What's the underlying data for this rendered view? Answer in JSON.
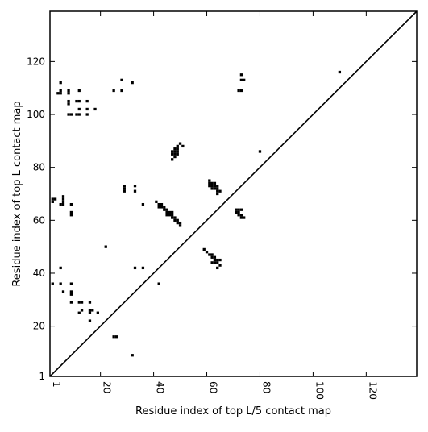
{
  "chart_data": {
    "type": "scatter",
    "title": "",
    "xlabel": "Residue index of top L/5 contact map",
    "ylabel": "Residue index of top L contact map",
    "xlim": [
      1,
      139
    ],
    "ylim": [
      1,
      139
    ],
    "xticks": [
      1,
      20,
      40,
      60,
      80,
      100,
      120
    ],
    "yticks": [
      1,
      20,
      40,
      60,
      80,
      100,
      120
    ],
    "tick_labels": [
      "1",
      "20",
      "40",
      "60",
      "80",
      "100",
      "120"
    ],
    "grid": false,
    "legend": "none",
    "marker": "square",
    "point_color": "#000000",
    "diagonal": true,
    "points": [
      [
        2,
        67
      ],
      [
        2,
        68
      ],
      [
        3,
        68
      ],
      [
        5,
        66
      ],
      [
        6,
        66
      ],
      [
        6,
        67
      ],
      [
        6,
        68
      ],
      [
        6,
        69
      ],
      [
        9,
        66
      ],
      [
        9,
        62
      ],
      [
        9,
        63
      ],
      [
        2,
        36
      ],
      [
        5,
        36
      ],
      [
        9,
        36
      ],
      [
        5,
        42
      ],
      [
        6,
        33
      ],
      [
        9,
        32
      ],
      [
        9,
        33
      ],
      [
        9,
        29
      ],
      [
        12,
        29
      ],
      [
        13,
        29
      ],
      [
        16,
        29
      ],
      [
        12,
        25
      ],
      [
        13,
        26
      ],
      [
        16,
        26
      ],
      [
        16,
        25
      ],
      [
        17,
        26
      ],
      [
        19,
        25
      ],
      [
        16,
        22
      ],
      [
        22,
        50
      ],
      [
        25,
        16
      ],
      [
        26,
        16
      ],
      [
        32,
        9
      ],
      [
        33,
        42
      ],
      [
        36,
        42
      ],
      [
        42,
        36
      ],
      [
        36,
        66
      ],
      [
        29,
        71
      ],
      [
        29,
        72
      ],
      [
        29,
        73
      ],
      [
        33,
        71
      ],
      [
        33,
        73
      ],
      [
        4,
        108
      ],
      [
        5,
        108
      ],
      [
        5,
        109
      ],
      [
        5,
        112
      ],
      [
        8,
        108
      ],
      [
        8,
        109
      ],
      [
        8,
        104
      ],
      [
        8,
        105
      ],
      [
        8,
        100
      ],
      [
        9,
        100
      ],
      [
        11,
        100
      ],
      [
        12,
        100
      ],
      [
        12,
        102
      ],
      [
        11,
        105
      ],
      [
        12,
        105
      ],
      [
        12,
        109
      ],
      [
        15,
        100
      ],
      [
        15,
        102
      ],
      [
        15,
        105
      ],
      [
        18,
        102
      ],
      [
        25,
        109
      ],
      [
        28,
        109
      ],
      [
        28,
        113
      ],
      [
        32,
        112
      ],
      [
        41,
        67
      ],
      [
        42,
        65
      ],
      [
        42,
        66
      ],
      [
        43,
        65
      ],
      [
        43,
        66
      ],
      [
        44,
        64
      ],
      [
        44,
        65
      ],
      [
        45,
        62
      ],
      [
        45,
        63
      ],
      [
        45,
        64
      ],
      [
        46,
        62
      ],
      [
        46,
        63
      ],
      [
        47,
        61
      ],
      [
        47,
        62
      ],
      [
        47,
        63
      ],
      [
        48,
        61
      ],
      [
        48,
        60
      ],
      [
        49,
        60
      ],
      [
        49,
        59
      ],
      [
        50,
        58
      ],
      [
        50,
        59
      ],
      [
        47,
        85
      ],
      [
        47,
        86
      ],
      [
        48,
        84
      ],
      [
        48,
        85
      ],
      [
        48,
        86
      ],
      [
        48,
        87
      ],
      [
        49,
        85
      ],
      [
        49,
        86
      ],
      [
        49,
        87
      ],
      [
        49,
        88
      ],
      [
        47,
        83
      ],
      [
        50,
        89
      ],
      [
        51,
        88
      ],
      [
        61,
        73
      ],
      [
        61,
        74
      ],
      [
        61,
        75
      ],
      [
        62,
        73
      ],
      [
        62,
        72
      ],
      [
        63,
        73
      ],
      [
        63,
        74
      ],
      [
        63,
        72
      ],
      [
        64,
        71
      ],
      [
        64,
        72
      ],
      [
        64,
        73
      ],
      [
        64,
        70
      ],
      [
        65,
        71
      ],
      [
        62,
        74
      ],
      [
        59,
        49
      ],
      [
        60,
        48
      ],
      [
        61,
        47
      ],
      [
        62,
        46
      ],
      [
        62,
        47
      ],
      [
        63,
        46
      ],
      [
        63,
        45
      ],
      [
        62,
        44
      ],
      [
        63,
        44
      ],
      [
        64,
        44
      ],
      [
        64,
        45
      ],
      [
        65,
        43
      ],
      [
        65,
        45
      ],
      [
        64,
        42
      ],
      [
        71,
        64
      ],
      [
        71,
        63
      ],
      [
        72,
        64
      ],
      [
        72,
        63
      ],
      [
        72,
        62
      ],
      [
        73,
        62
      ],
      [
        73,
        61
      ],
      [
        73,
        64
      ],
      [
        74,
        61
      ],
      [
        72,
        109
      ],
      [
        73,
        109
      ],
      [
        73,
        113
      ],
      [
        73,
        115
      ],
      [
        74,
        113
      ],
      [
        80,
        86
      ],
      [
        110,
        116
      ]
    ]
  }
}
